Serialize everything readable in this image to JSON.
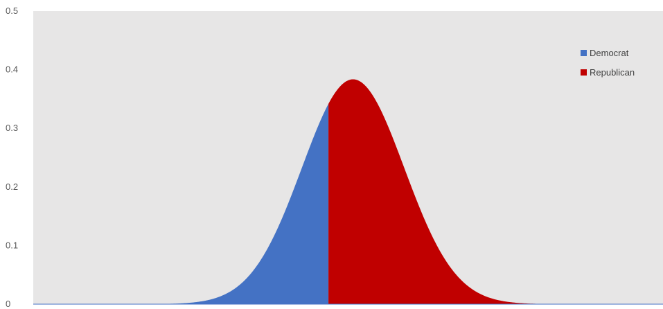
{
  "chart_data": {
    "type": "area",
    "title": "",
    "xlabel": "",
    "ylabel": "",
    "ylim": [
      0,
      0.5
    ],
    "y_ticks": [
      "0",
      "0.1",
      "0.2",
      "0.3",
      "0.4",
      "0.5"
    ],
    "grid": false,
    "legend_position": "top-right",
    "plot_background": "#e7e6e6",
    "x_range": [
      -6,
      6.8
    ],
    "distribution": {
      "mean": 0.5,
      "sd": 1.04,
      "split_at": 0.0
    },
    "series": [
      {
        "name": "Democrat",
        "color": "#4472c4",
        "x_range": [
          -6,
          0.0
        ]
      },
      {
        "name": "Republican",
        "color": "#c00000",
        "x_range": [
          0.0,
          6.8
        ]
      }
    ]
  }
}
